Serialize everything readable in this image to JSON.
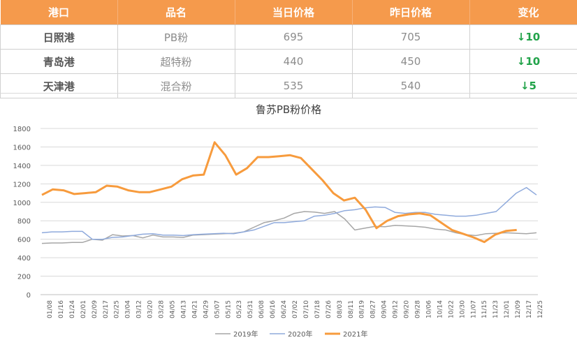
{
  "table": {
    "headers": [
      "港口",
      "品名",
      "当日价格",
      "昨日价格",
      "变化"
    ],
    "rows": [
      {
        "port": "日照港",
        "product": "PB粉",
        "today": "695",
        "yesterday": "705",
        "change": "↓10"
      },
      {
        "port": "青岛港",
        "product": "超特粉",
        "today": "440",
        "yesterday": "450",
        "change": "↓10"
      },
      {
        "port": "天津港",
        "product": "混合粉",
        "today": "535",
        "yesterday": "540",
        "change": "↓5"
      }
    ]
  },
  "colors": {
    "header_bg": "#f59a4c",
    "change_down": "#22a34a"
  },
  "chart_data": {
    "type": "line",
    "title": "鲁苏PB粉价格",
    "xlabel": "",
    "ylabel": "",
    "ylim": [
      0,
      1800
    ],
    "yticks": [
      0,
      200,
      400,
      600,
      800,
      1000,
      1200,
      1400,
      1600,
      1800
    ],
    "xticks": [
      "01/08",
      "01/16",
      "01/24",
      "02/01",
      "02/09",
      "02/17",
      "02/25",
      "03/04",
      "03/12",
      "03/20",
      "03/28",
      "04/05",
      "04/13",
      "04/21",
      "04/29",
      "05/07",
      "05/15",
      "05/23",
      "05/31",
      "06/08",
      "06/16",
      "06/24",
      "07/02",
      "07/10",
      "07/18",
      "07/26",
      "08/03",
      "08/11",
      "08/19",
      "08/27",
      "09/04",
      "09/12",
      "09/20",
      "09/28",
      "10/06",
      "10/14",
      "10/22",
      "10/30",
      "11/07",
      "11/15",
      "11/23",
      "12/01",
      "12/09",
      "12/17",
      "12/25"
    ],
    "grid": "horizontal",
    "legend_position": "bottom",
    "series": [
      {
        "name": "2019年",
        "color": "#a6a6a6",
        "width": 1.5,
        "values": [
          555,
          560,
          560,
          565,
          565,
          600,
          590,
          650,
          635,
          640,
          615,
          645,
          625,
          625,
          620,
          645,
          650,
          655,
          660,
          665,
          680,
          730,
          780,
          800,
          830,
          880,
          900,
          895,
          880,
          900,
          820,
          700,
          720,
          740,
          735,
          750,
          745,
          740,
          730,
          710,
          700,
          670,
          650,
          640,
          660,
          665,
          670,
          665,
          660,
          670
        ]
      },
      {
        "name": "2020年",
        "color": "#8faadc",
        "width": 1.5,
        "values": [
          670,
          680,
          680,
          685,
          685,
          600,
          600,
          620,
          625,
          640,
          655,
          660,
          645,
          645,
          640,
          650,
          655,
          660,
          665,
          660,
          680,
          700,
          740,
          780,
          780,
          790,
          800,
          850,
          860,
          880,
          910,
          920,
          940,
          950,
          945,
          890,
          880,
          890,
          890,
          870,
          860,
          850,
          850,
          860,
          880,
          900,
          1000,
          1100,
          1160,
          1080
        ]
      },
      {
        "name": "2021年",
        "color": "#f79b3d",
        "width": 3,
        "values": [
          1080,
          1140,
          1130,
          1090,
          1100,
          1110,
          1180,
          1170,
          1130,
          1110,
          1110,
          1140,
          1170,
          1250,
          1290,
          1300,
          1650,
          1510,
          1300,
          1370,
          1490,
          1490,
          1500,
          1510,
          1480,
          1360,
          1240,
          1100,
          1020,
          1050,
          920,
          720,
          800,
          850,
          870,
          880,
          860,
          780,
          700,
          660,
          620,
          570,
          650,
          690,
          700
        ]
      }
    ],
    "legend": [
      "2019年",
      "2020年",
      "2021年"
    ]
  }
}
